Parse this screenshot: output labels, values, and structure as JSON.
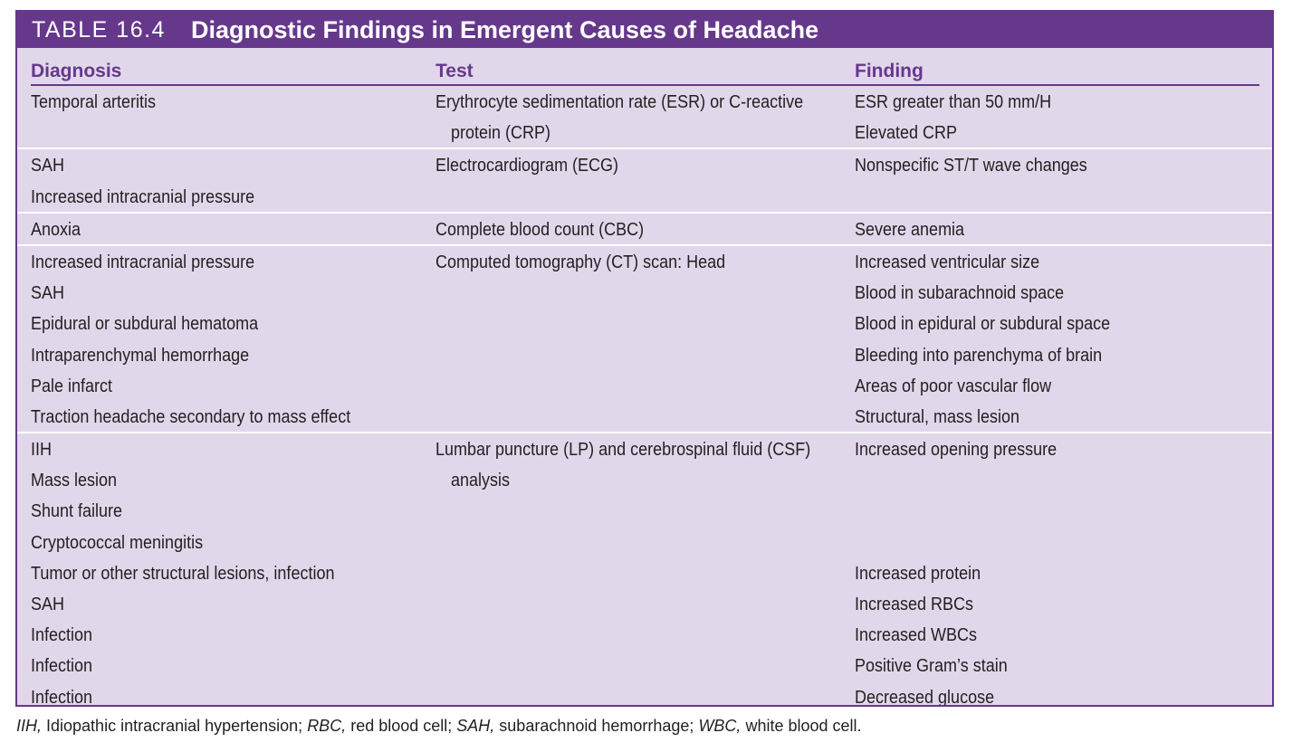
{
  "table": {
    "label": "TABLE 16.4",
    "title": "Diagnostic Findings in Emergent Causes of Headache",
    "headers": {
      "diagnosis": "Diagnosis",
      "test": "Test",
      "finding": "Finding"
    },
    "groups": [
      {
        "lines": [
          {
            "diagnosis": "Temporal arteritis",
            "test": "Erythrocyte sedimentation rate (ESR) or C-reactive",
            "finding": "ESR greater than 50 mm/H"
          },
          {
            "diagnosis": "",
            "test": "protein (CRP)",
            "finding": "Elevated CRP"
          }
        ]
      },
      {
        "lines": [
          {
            "diagnosis": "SAH",
            "test": "Electrocardiogram (ECG)",
            "finding": "Nonspecific ST/T wave changes"
          },
          {
            "diagnosis": "Increased intracranial pressure",
            "test": "",
            "finding": ""
          }
        ]
      },
      {
        "lines": [
          {
            "diagnosis": "Anoxia",
            "test": "Complete blood count (CBC)",
            "finding": "Severe anemia"
          }
        ]
      },
      {
        "lines": [
          {
            "diagnosis": "Increased intracranial pressure",
            "test": "Computed tomography (CT) scan: Head",
            "finding": "Increased ventricular size"
          },
          {
            "diagnosis": "SAH",
            "test": "",
            "finding": "Blood in subarachnoid space"
          },
          {
            "diagnosis": "Epidural or subdural hematoma",
            "test": "",
            "finding": "Blood in epidural or subdural space"
          },
          {
            "diagnosis": "Intraparenchymal hemorrhage",
            "test": "",
            "finding": "Bleeding into parenchyma of brain"
          },
          {
            "diagnosis": "Pale infarct",
            "test": "",
            "finding": "Areas of poor vascular flow"
          },
          {
            "diagnosis": "Traction headache secondary to mass effect",
            "test": "",
            "finding": "Structural, mass lesion"
          }
        ]
      },
      {
        "lines": [
          {
            "diagnosis": "IIH",
            "test": "Lumbar puncture (LP) and cerebrospinal fluid (CSF)",
            "finding": "Increased opening pressure"
          },
          {
            "diagnosis": "Mass lesion",
            "test": "analysis",
            "finding": ""
          },
          {
            "diagnosis": "Shunt failure",
            "test": "",
            "finding": ""
          },
          {
            "diagnosis": "Cryptococcal meningitis",
            "test": "",
            "finding": ""
          },
          {
            "diagnosis": "Tumor or other structural lesions, infection",
            "test": "",
            "finding": "Increased protein"
          },
          {
            "diagnosis": "SAH",
            "test": "",
            "finding": "Increased RBCs"
          },
          {
            "diagnosis": "Infection",
            "test": "",
            "finding": "Increased WBCs"
          },
          {
            "diagnosis": "Infection",
            "test": "",
            "finding": "Positive Gram’s stain"
          },
          {
            "diagnosis": "Infection",
            "test": "",
            "finding": "Decreased glucose"
          }
        ]
      }
    ]
  },
  "footnote": [
    {
      "abbr": "IIH,",
      "text": " Idiopathic intracranial hypertension; "
    },
    {
      "abbr": "RBC,",
      "text": " red blood cell; "
    },
    {
      "abbr": "SAH,",
      "text": " subarachnoid hemorrhage; "
    },
    {
      "abbr": "WBC,",
      "text": " white blood cell."
    }
  ],
  "colors": {
    "accent": "#65388c",
    "table_bg": "#e1d7ea",
    "text": "#231f20"
  }
}
